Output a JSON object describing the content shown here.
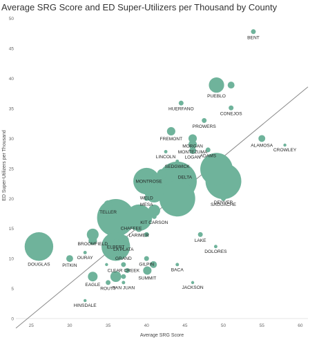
{
  "chart_data": {
    "type": "scatter",
    "title": "Average SRG Score and ED Super-Utilizers per Thousand by County",
    "xlabel": "Average SRG Score",
    "ylabel": "ED Super-Utilizers per Thousand",
    "xlim": [
      23,
      61
    ],
    "ylim": [
      0,
      51
    ],
    "xticks": [
      "25",
      "30",
      "35",
      "40",
      "45",
      "50",
      "55",
      "60"
    ],
    "yticks": [
      "0",
      "5",
      "10",
      "15",
      "20",
      "25",
      "30",
      "35",
      "40",
      "45",
      "50"
    ],
    "marker_color": "#6fb39b",
    "trendline_color": "#888888",
    "grid": false,
    "size_note": "bubble area proportional to county size (relative units)",
    "trendline": {
      "x": [
        23,
        61
      ],
      "y": [
        -1.6,
        38.6
      ]
    },
    "points": [
      {
        "name": "BENT",
        "x": 53.9,
        "y": 47.8,
        "size": 1,
        "show_label": true
      },
      {
        "name": "PUEBLO",
        "x": 49.1,
        "y": 38.9,
        "size": 10,
        "show_label": true
      },
      {
        "name": "",
        "x": 51.0,
        "y": 38.9,
        "size": 2,
        "show_label": false
      },
      {
        "name": "HUERFANO",
        "x": 44.5,
        "y": 35.9,
        "size": 1,
        "show_label": true
      },
      {
        "name": "CONEJOS",
        "x": 51.0,
        "y": 35.1,
        "size": 1,
        "show_label": true
      },
      {
        "name": "PROWERS",
        "x": 47.5,
        "y": 33.0,
        "size": 1,
        "show_label": true
      },
      {
        "name": "FREMONT",
        "x": 43.2,
        "y": 31.2,
        "size": 3,
        "show_label": true
      },
      {
        "name": "MORGAN",
        "x": 46.0,
        "y": 30.0,
        "size": 3,
        "show_label": true
      },
      {
        "name": "MONTEZUMA",
        "x": 46.0,
        "y": 29.0,
        "size": 3,
        "show_label": true
      },
      {
        "name": "ALAMOSA",
        "x": 55.0,
        "y": 30.0,
        "size": 2,
        "show_label": true
      },
      {
        "name": "CROWLEY",
        "x": 58.0,
        "y": 28.9,
        "size": 0.4,
        "show_label": true
      },
      {
        "name": "LOGAN",
        "x": 46.0,
        "y": 28.0,
        "size": 2,
        "show_label": true
      },
      {
        "name": "ADAMS",
        "x": 48.0,
        "y": 28.1,
        "size": 1,
        "show_label": true
      },
      {
        "name": "LINCOLN",
        "x": 42.5,
        "y": 27.8,
        "size": 0.5,
        "show_label": true
      },
      {
        "name": "SEDGWICK",
        "x": 44.0,
        "y": 26.2,
        "size": 0.5,
        "show_label": true
      },
      {
        "name": "DELTA",
        "x": 45.0,
        "y": 24.8,
        "size": 3,
        "show_label": true
      },
      {
        "name": "",
        "x": 49.1,
        "y": 24.9,
        "size": 45,
        "show_label": false
      },
      {
        "name": "DENVER",
        "x": 50.0,
        "y": 22.9,
        "size": 55,
        "show_label": true
      },
      {
        "name": "MONTROSE",
        "x": 40.3,
        "y": 24.0,
        "size": 2,
        "show_label": true
      },
      {
        "name": "",
        "x": 42.0,
        "y": 24.1,
        "size": 4,
        "show_label": false
      },
      {
        "name": "WELD",
        "x": 40.0,
        "y": 22.9,
        "size": 30,
        "show_label": true
      },
      {
        "name": "",
        "x": 44.0,
        "y": 22.9,
        "size": 65,
        "show_label": false
      },
      {
        "name": "",
        "x": 41.0,
        "y": 20.9,
        "size": 15,
        "show_label": false
      },
      {
        "name": "MESA",
        "x": 40.0,
        "y": 20.0,
        "size": 1,
        "show_label": true
      },
      {
        "name": "",
        "x": 44.0,
        "y": 20.0,
        "size": 55,
        "show_label": false
      },
      {
        "name": "SAGUACHE",
        "x": 50.0,
        "y": 20.0,
        "size": 1,
        "show_label": true
      },
      {
        "name": "TELLER",
        "x": 35.0,
        "y": 19.0,
        "size": 3,
        "show_label": true
      },
      {
        "name": "",
        "x": 41.0,
        "y": 18.0,
        "size": 6,
        "show_label": false
      },
      {
        "name": "",
        "x": 36.0,
        "y": 16.8,
        "size": 60,
        "show_label": false
      },
      {
        "name": "CHAFFEE",
        "x": 38.0,
        "y": 16.0,
        "size": 1,
        "show_label": true
      },
      {
        "name": "",
        "x": 39.0,
        "y": 16.8,
        "size": 30,
        "show_label": false
      },
      {
        "name": "KIT CARSON",
        "x": 41.0,
        "y": 17.0,
        "size": 1,
        "show_label": true
      },
      {
        "name": "LARIMER",
        "x": 39.0,
        "y": 15.0,
        "size": 2,
        "show_label": true
      },
      {
        "name": "BROOMFIELD",
        "x": 33.0,
        "y": 14.0,
        "size": 6,
        "show_label": true
      },
      {
        "name": "",
        "x": 40.0,
        "y": 14.0,
        "size": 1,
        "show_label": false
      },
      {
        "name": "LAKE",
        "x": 47.0,
        "y": 14.0,
        "size": 1,
        "show_label": true
      },
      {
        "name": "",
        "x": 33.0,
        "y": 13.0,
        "size": 3,
        "show_label": false
      },
      {
        "name": "ELBERT",
        "x": 36.0,
        "y": 12.9,
        "size": 1,
        "show_label": true
      },
      {
        "name": "LA PLATA",
        "x": 37.0,
        "y": 13.0,
        "size": 5,
        "show_label": true
      },
      {
        "name": "",
        "x": 36.0,
        "y": 12.0,
        "size": 35,
        "show_label": false
      },
      {
        "name": "DOUGLAS",
        "x": 26.0,
        "y": 12.0,
        "size": 35,
        "show_label": true
      },
      {
        "name": "DOLORES",
        "x": 49.0,
        "y": 12.0,
        "size": 0.5,
        "show_label": true
      },
      {
        "name": "OURAY",
        "x": 32.0,
        "y": 11.0,
        "size": 0.5,
        "show_label": true
      },
      {
        "name": "GRAND",
        "x": 37.0,
        "y": 11.0,
        "size": 1,
        "show_label": true
      },
      {
        "name": "PITKIN",
        "x": 30.0,
        "y": 10.0,
        "size": 2,
        "show_label": true
      },
      {
        "name": "GILPIN",
        "x": 40.0,
        "y": 10.0,
        "size": 1,
        "show_label": true
      },
      {
        "name": "",
        "x": 34.8,
        "y": 9.0,
        "size": 0.4,
        "show_label": false
      },
      {
        "name": "CLEAR CREEK",
        "x": 37.0,
        "y": 9.0,
        "size": 1,
        "show_label": true
      },
      {
        "name": "",
        "x": 40.9,
        "y": 9.0,
        "size": 2,
        "show_label": false
      },
      {
        "name": "BACA",
        "x": 44.0,
        "y": 9.0,
        "size": 0.5,
        "show_label": true
      },
      {
        "name": "",
        "x": 37.5,
        "y": 8.0,
        "size": 1,
        "show_label": false
      },
      {
        "name": "SUMMIT",
        "x": 40.1,
        "y": 8.0,
        "size": 3,
        "show_label": true
      },
      {
        "name": "EAGLE",
        "x": 33.0,
        "y": 7.0,
        "size": 4,
        "show_label": true
      },
      {
        "name": "",
        "x": 36.0,
        "y": 7.0,
        "size": 5,
        "show_label": false
      },
      {
        "name": "",
        "x": 37.0,
        "y": 7.0,
        "size": 1,
        "show_label": false
      },
      {
        "name": "ROUTT",
        "x": 35.0,
        "y": 6.0,
        "size": 1,
        "show_label": true
      },
      {
        "name": "SAN JUAN",
        "x": 37.0,
        "y": 6.0,
        "size": 0.5,
        "show_label": true
      },
      {
        "name": "JACKSON",
        "x": 46.0,
        "y": 6.0,
        "size": 0.4,
        "show_label": true
      },
      {
        "name": "HINSDALE",
        "x": 32.0,
        "y": 3.0,
        "size": 0.4,
        "show_label": true
      }
    ]
  }
}
